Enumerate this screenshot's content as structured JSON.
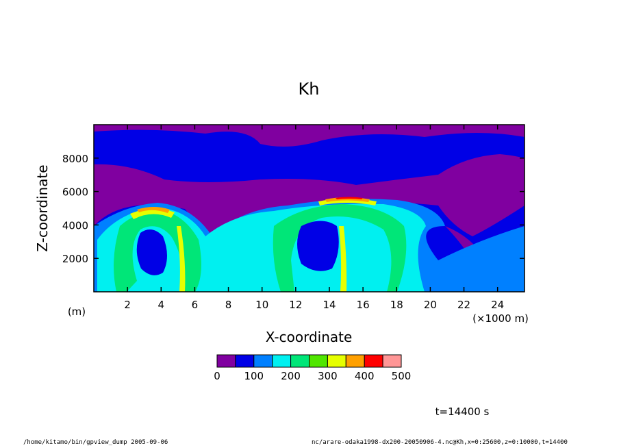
{
  "chart_data": {
    "type": "heatmap",
    "title": "Kh",
    "xlabel": "X-coordinate",
    "ylabel": "Z-coordinate",
    "x_unit": "(×1000 m)",
    "y_unit": "(m)",
    "xlim": [
      0,
      25.6
    ],
    "ylim": [
      0,
      10000
    ],
    "x_ticks": [
      2,
      4,
      6,
      8,
      10,
      12,
      14,
      16,
      18,
      20,
      22,
      24
    ],
    "y_ticks": [
      2000,
      4000,
      6000,
      8000
    ],
    "colorbar": {
      "levels": [
        0,
        50,
        100,
        150,
        200,
        250,
        300,
        350,
        400,
        450,
        500
      ],
      "labels": [
        "0",
        "100",
        "200",
        "300",
        "400",
        "500"
      ],
      "label_values": [
        0,
        100,
        200,
        300,
        400,
        500
      ],
      "colors": [
        "#8000a0",
        "#0000e6",
        "#0080ff",
        "#00f0f0",
        "#00e678",
        "#50e600",
        "#e6ff00",
        "#ffa000",
        "#ff0000",
        "#ff9696"
      ]
    },
    "time_label": "t=14400 s"
  },
  "footer": {
    "left": "/home/kitamo/bin/gpview_dump  2005-09-06",
    "right": "nc/arare-odaka1998-dx200-20050906-4.nc@Kh,x=0:25600,z=0:10000,t=14400"
  }
}
